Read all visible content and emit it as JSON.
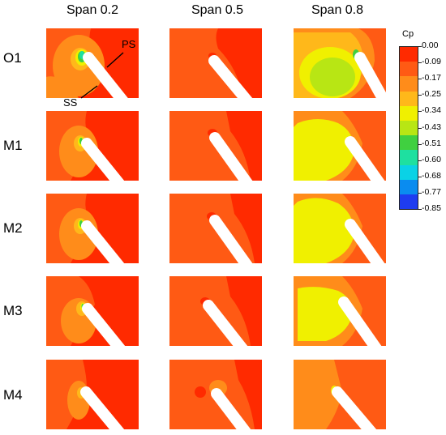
{
  "columns": [
    "Span 0.2",
    "Span 0.5",
    "Span 0.8"
  ],
  "rows": [
    "O1",
    "M1",
    "M2",
    "M3",
    "M4"
  ],
  "annotations": {
    "ps": "PS",
    "ss": "SS"
  },
  "colorbar": {
    "title": "Cp",
    "ticks": [
      "0.00",
      "-0.09",
      "-0.17",
      "-0.25",
      "-0.34",
      "-0.43",
      "-0.51",
      "-0.60",
      "-0.68",
      "-0.77",
      "-0.85"
    ],
    "colors": [
      "#ff2a00",
      "#ff5a14",
      "#ff8c1a",
      "#ffb81a",
      "#f0f000",
      "#b8e614",
      "#40d040",
      "#1ee0a0",
      "#0ad2e6",
      "#0a8cf0",
      "#1e3cf0"
    ]
  }
}
